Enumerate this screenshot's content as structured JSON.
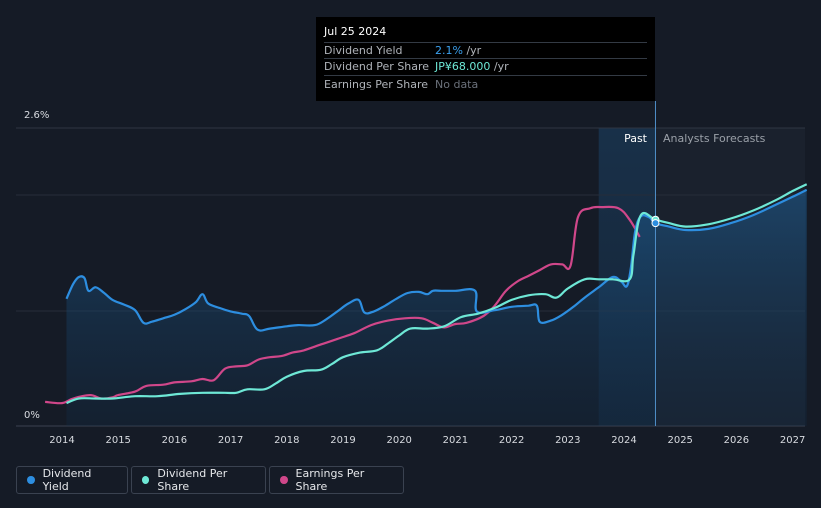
{
  "tooltip": {
    "date": "Jul 25 2024",
    "rows": [
      {
        "label": "Dividend Yield",
        "value": "2.1%",
        "unit": " /yr",
        "color": "#3aa0ee"
      },
      {
        "label": "Dividend Per Share",
        "value": "JP¥68.000",
        "unit": " /yr",
        "color": "#6ee8d6"
      },
      {
        "label": "Earnings Per Share",
        "value": "No data",
        "unit": "",
        "color": "#6b717b"
      }
    ]
  },
  "labels": {
    "past": "Past",
    "forecast": "Analysts Forecasts"
  },
  "legend": [
    {
      "label": "Dividend Yield",
      "color": "#2d8ee0"
    },
    {
      "label": "Dividend Per Share",
      "color": "#6ee8d6"
    },
    {
      "label": "Earnings Per Share",
      "color": "#d0478a"
    }
  ],
  "chart_data": {
    "type": "line",
    "x_ticks": [
      "2014",
      "2015",
      "2016",
      "2017",
      "2018",
      "2019",
      "2020",
      "2021",
      "2022",
      "2023",
      "2024",
      "2025",
      "2026",
      "2027"
    ],
    "y_ticks": [
      "0%",
      "2.6%"
    ],
    "ylim": [
      0,
      2.6
    ],
    "xlim": [
      2013.7,
      2027.25
    ],
    "past_end": 2024.56,
    "highlight_start": 2023.55,
    "series": [
      {
        "name": "Dividend Yield",
        "color": "#2d8ee0",
        "points": [
          [
            2014.08,
            1.11
          ],
          [
            2014.2,
            1.24
          ],
          [
            2014.3,
            1.3
          ],
          [
            2014.4,
            1.29
          ],
          [
            2014.47,
            1.18
          ],
          [
            2014.6,
            1.21
          ],
          [
            2014.75,
            1.16
          ],
          [
            2014.9,
            1.1
          ],
          [
            2015.1,
            1.06
          ],
          [
            2015.3,
            1.01
          ],
          [
            2015.45,
            0.9
          ],
          [
            2015.6,
            0.91
          ],
          [
            2015.8,
            0.94
          ],
          [
            2016.0,
            0.97
          ],
          [
            2016.2,
            1.02
          ],
          [
            2016.38,
            1.08
          ],
          [
            2016.5,
            1.15
          ],
          [
            2016.6,
            1.07
          ],
          [
            2016.8,
            1.03
          ],
          [
            2017.0,
            1.0
          ],
          [
            2017.2,
            0.98
          ],
          [
            2017.33,
            0.96
          ],
          [
            2017.48,
            0.84
          ],
          [
            2017.7,
            0.85
          ],
          [
            2018.0,
            0.87
          ],
          [
            2018.2,
            0.88
          ],
          [
            2018.5,
            0.88
          ],
          [
            2018.7,
            0.93
          ],
          [
            2018.9,
            1.0
          ],
          [
            2019.1,
            1.07
          ],
          [
            2019.28,
            1.1
          ],
          [
            2019.38,
            0.99
          ],
          [
            2019.55,
            1.0
          ],
          [
            2019.75,
            1.05
          ],
          [
            2019.95,
            1.11
          ],
          [
            2020.15,
            1.16
          ],
          [
            2020.35,
            1.17
          ],
          [
            2020.5,
            1.15
          ],
          [
            2020.6,
            1.18
          ],
          [
            2020.75,
            1.18
          ],
          [
            2021.0,
            1.18
          ],
          [
            2021.35,
            1.18
          ],
          [
            2021.38,
            1.0
          ],
          [
            2021.7,
            1.01
          ],
          [
            2022.0,
            1.04
          ],
          [
            2022.3,
            1.05
          ],
          [
            2022.45,
            1.05
          ],
          [
            2022.5,
            0.91
          ],
          [
            2022.7,
            0.92
          ],
          [
            2022.9,
            0.97
          ],
          [
            2023.1,
            1.04
          ],
          [
            2023.3,
            1.12
          ],
          [
            2023.55,
            1.21
          ],
          [
            2023.8,
            1.3
          ],
          [
            2023.95,
            1.26
          ],
          [
            2024.05,
            1.22
          ],
          [
            2024.12,
            1.37
          ],
          [
            2024.2,
            1.7
          ],
          [
            2024.3,
            1.83
          ],
          [
            2024.45,
            1.82
          ],
          [
            2024.56,
            1.77
          ],
          [
            2024.8,
            1.74
          ],
          [
            2025.1,
            1.71
          ],
          [
            2025.5,
            1.72
          ],
          [
            2025.9,
            1.77
          ],
          [
            2026.3,
            1.84
          ],
          [
            2026.7,
            1.93
          ],
          [
            2027.0,
            2.0
          ],
          [
            2027.25,
            2.06
          ]
        ]
      },
      {
        "name": "Dividend Per Share",
        "color": "#6ee8d6",
        "points": [
          [
            2014.08,
            0.2
          ],
          [
            2014.3,
            0.24
          ],
          [
            2014.6,
            0.24
          ],
          [
            2014.9,
            0.24
          ],
          [
            2015.3,
            0.26
          ],
          [
            2015.7,
            0.26
          ],
          [
            2016.1,
            0.28
          ],
          [
            2016.5,
            0.29
          ],
          [
            2016.9,
            0.29
          ],
          [
            2017.1,
            0.29
          ],
          [
            2017.3,
            0.32
          ],
          [
            2017.6,
            0.32
          ],
          [
            2017.8,
            0.37
          ],
          [
            2018.0,
            0.43
          ],
          [
            2018.3,
            0.48
          ],
          [
            2018.6,
            0.49
          ],
          [
            2018.8,
            0.54
          ],
          [
            2019.0,
            0.6
          ],
          [
            2019.3,
            0.64
          ],
          [
            2019.6,
            0.66
          ],
          [
            2019.8,
            0.72
          ],
          [
            2020.0,
            0.79
          ],
          [
            2020.2,
            0.85
          ],
          [
            2020.5,
            0.85
          ],
          [
            2020.8,
            0.87
          ],
          [
            2021.1,
            0.95
          ],
          [
            2021.4,
            0.98
          ],
          [
            2021.7,
            1.03
          ],
          [
            2022.0,
            1.1
          ],
          [
            2022.3,
            1.14
          ],
          [
            2022.6,
            1.15
          ],
          [
            2022.8,
            1.12
          ],
          [
            2023.0,
            1.2
          ],
          [
            2023.3,
            1.28
          ],
          [
            2023.55,
            1.28
          ],
          [
            2023.8,
            1.28
          ],
          [
            2024.1,
            1.28
          ],
          [
            2024.17,
            1.5
          ],
          [
            2024.3,
            1.84
          ],
          [
            2024.56,
            1.8
          ],
          [
            2024.8,
            1.77
          ],
          [
            2025.1,
            1.74
          ],
          [
            2025.5,
            1.76
          ],
          [
            2025.9,
            1.81
          ],
          [
            2026.3,
            1.88
          ],
          [
            2026.7,
            1.97
          ],
          [
            2027.0,
            2.05
          ],
          [
            2027.25,
            2.11
          ]
        ]
      },
      {
        "name": "Earnings Per Share",
        "color": "#d0478a",
        "points": [
          [
            2013.7,
            0.21
          ],
          [
            2014.0,
            0.2
          ],
          [
            2014.2,
            0.24
          ],
          [
            2014.5,
            0.27
          ],
          [
            2014.7,
            0.24
          ],
          [
            2014.9,
            0.25
          ],
          [
            2015.0,
            0.27
          ],
          [
            2015.3,
            0.3
          ],
          [
            2015.5,
            0.35
          ],
          [
            2015.8,
            0.36
          ],
          [
            2016.0,
            0.38
          ],
          [
            2016.3,
            0.39
          ],
          [
            2016.5,
            0.41
          ],
          [
            2016.7,
            0.4
          ],
          [
            2016.9,
            0.5
          ],
          [
            2017.1,
            0.52
          ],
          [
            2017.3,
            0.53
          ],
          [
            2017.5,
            0.58
          ],
          [
            2017.7,
            0.6
          ],
          [
            2017.9,
            0.61
          ],
          [
            2018.1,
            0.64
          ],
          [
            2018.3,
            0.66
          ],
          [
            2018.6,
            0.71
          ],
          [
            2018.9,
            0.76
          ],
          [
            2019.2,
            0.81
          ],
          [
            2019.5,
            0.88
          ],
          [
            2019.8,
            0.92
          ],
          [
            2020.1,
            0.94
          ],
          [
            2020.4,
            0.94
          ],
          [
            2020.6,
            0.9
          ],
          [
            2020.8,
            0.86
          ],
          [
            2021.0,
            0.89
          ],
          [
            2021.2,
            0.9
          ],
          [
            2021.5,
            0.96
          ],
          [
            2021.7,
            1.05
          ],
          [
            2021.9,
            1.18
          ],
          [
            2022.1,
            1.26
          ],
          [
            2022.3,
            1.31
          ],
          [
            2022.5,
            1.36
          ],
          [
            2022.7,
            1.41
          ],
          [
            2022.9,
            1.41
          ],
          [
            2023.05,
            1.4
          ],
          [
            2023.18,
            1.82
          ],
          [
            2023.4,
            1.9
          ],
          [
            2023.6,
            1.91
          ],
          [
            2023.9,
            1.9
          ],
          [
            2024.1,
            1.8
          ],
          [
            2024.28,
            1.65
          ]
        ]
      }
    ]
  }
}
